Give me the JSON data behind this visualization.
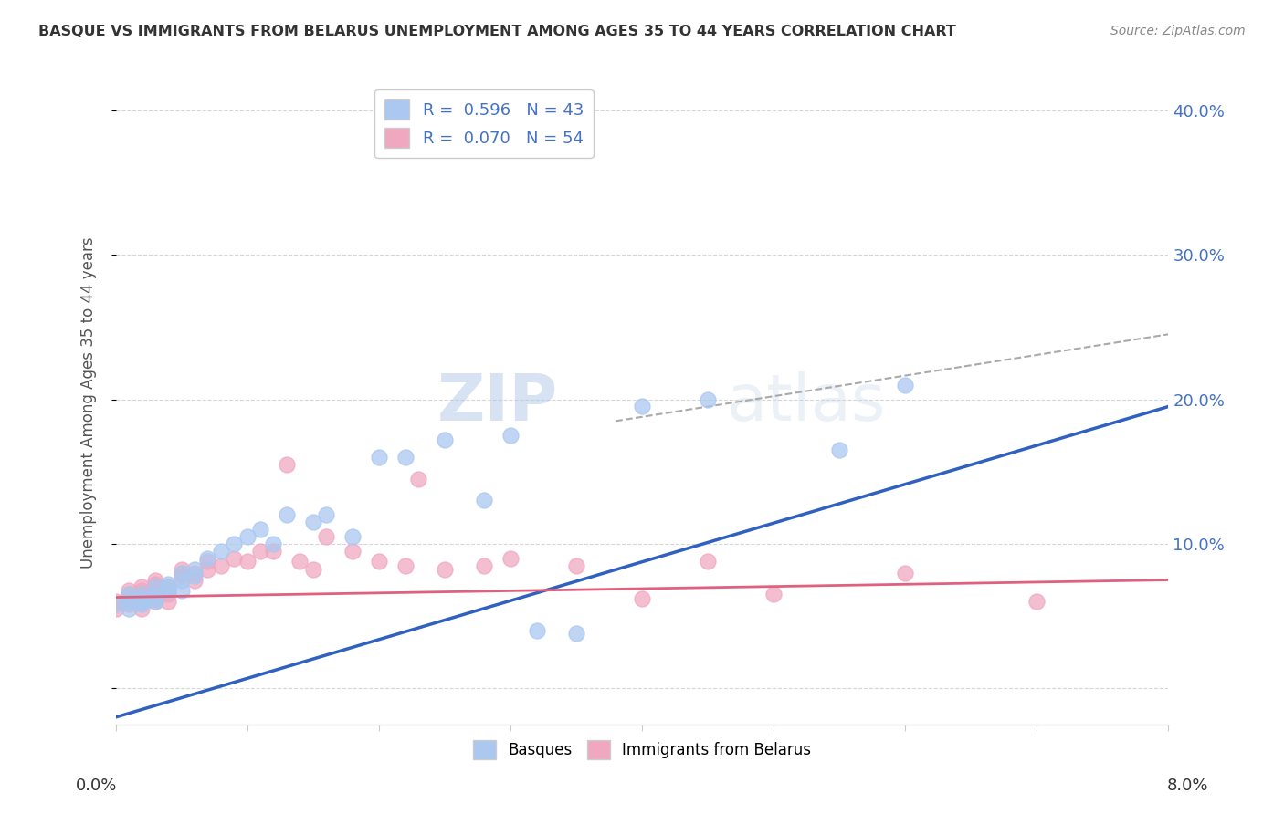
{
  "title": "BASQUE VS IMMIGRANTS FROM BELARUS UNEMPLOYMENT AMONG AGES 35 TO 44 YEARS CORRELATION CHART",
  "source": "Source: ZipAtlas.com",
  "ylabel": "Unemployment Among Ages 35 to 44 years",
  "xlim": [
    0.0,
    0.08
  ],
  "ylim": [
    -0.025,
    0.42
  ],
  "legend_r1": "R =  0.596",
  "legend_n1": "N = 43",
  "legend_r2": "R =  0.070",
  "legend_n2": "N = 54",
  "basque_color": "#aac8f0",
  "belarus_color": "#f0a8c0",
  "basque_line_color": "#3060c0",
  "belarus_line_color": "#e06080",
  "grid_color": "#cccccc",
  "background_color": "#ffffff",
  "watermark_color": "#d8e8f8",
  "basques_x": [
    0.0,
    0.001,
    0.001,
    0.001,
    0.001,
    0.002,
    0.002,
    0.002,
    0.002,
    0.002,
    0.003,
    0.003,
    0.003,
    0.003,
    0.004,
    0.004,
    0.004,
    0.005,
    0.005,
    0.005,
    0.006,
    0.006,
    0.007,
    0.008,
    0.009,
    0.01,
    0.011,
    0.012,
    0.013,
    0.015,
    0.016,
    0.018,
    0.02,
    0.022,
    0.025,
    0.028,
    0.03,
    0.032,
    0.035,
    0.04,
    0.045,
    0.055,
    0.06
  ],
  "basques_y": [
    0.058,
    0.06,
    0.062,
    0.055,
    0.065,
    0.06,
    0.058,
    0.065,
    0.06,
    0.062,
    0.06,
    0.065,
    0.07,
    0.062,
    0.068,
    0.07,
    0.072,
    0.075,
    0.068,
    0.08,
    0.082,
    0.078,
    0.09,
    0.095,
    0.1,
    0.105,
    0.11,
    0.1,
    0.12,
    0.115,
    0.12,
    0.105,
    0.16,
    0.16,
    0.172,
    0.13,
    0.175,
    0.04,
    0.038,
    0.195,
    0.2,
    0.165,
    0.21
  ],
  "belarus_x": [
    0.0,
    0.0,
    0.001,
    0.001,
    0.001,
    0.001,
    0.001,
    0.002,
    0.002,
    0.002,
    0.002,
    0.002,
    0.002,
    0.002,
    0.003,
    0.003,
    0.003,
    0.003,
    0.003,
    0.003,
    0.003,
    0.004,
    0.004,
    0.004,
    0.004,
    0.005,
    0.005,
    0.005,
    0.006,
    0.006,
    0.007,
    0.007,
    0.008,
    0.009,
    0.01,
    0.011,
    0.012,
    0.013,
    0.014,
    0.015,
    0.016,
    0.018,
    0.02,
    0.022,
    0.023,
    0.025,
    0.028,
    0.03,
    0.035,
    0.04,
    0.045,
    0.05,
    0.06,
    0.07
  ],
  "belarus_y": [
    0.055,
    0.06,
    0.062,
    0.065,
    0.058,
    0.06,
    0.068,
    0.06,
    0.055,
    0.062,
    0.065,
    0.06,
    0.068,
    0.07,
    0.062,
    0.065,
    0.068,
    0.07,
    0.06,
    0.072,
    0.075,
    0.06,
    0.065,
    0.068,
    0.07,
    0.08,
    0.082,
    0.078,
    0.075,
    0.08,
    0.082,
    0.088,
    0.085,
    0.09,
    0.088,
    0.095,
    0.095,
    0.155,
    0.088,
    0.082,
    0.105,
    0.095,
    0.088,
    0.085,
    0.145,
    0.082,
    0.085,
    0.09,
    0.085,
    0.062,
    0.088,
    0.065,
    0.08,
    0.06
  ],
  "basque_line_x0": 0.0,
  "basque_line_y0": -0.02,
  "basque_line_x1": 0.08,
  "basque_line_y1": 0.195,
  "belarus_line_x0": 0.0,
  "belarus_line_y0": 0.063,
  "belarus_line_x1": 0.08,
  "belarus_line_y1": 0.075,
  "gray_line_x0": 0.038,
  "gray_line_y0": 0.185,
  "gray_line_x1": 0.08,
  "gray_line_y1": 0.245
}
